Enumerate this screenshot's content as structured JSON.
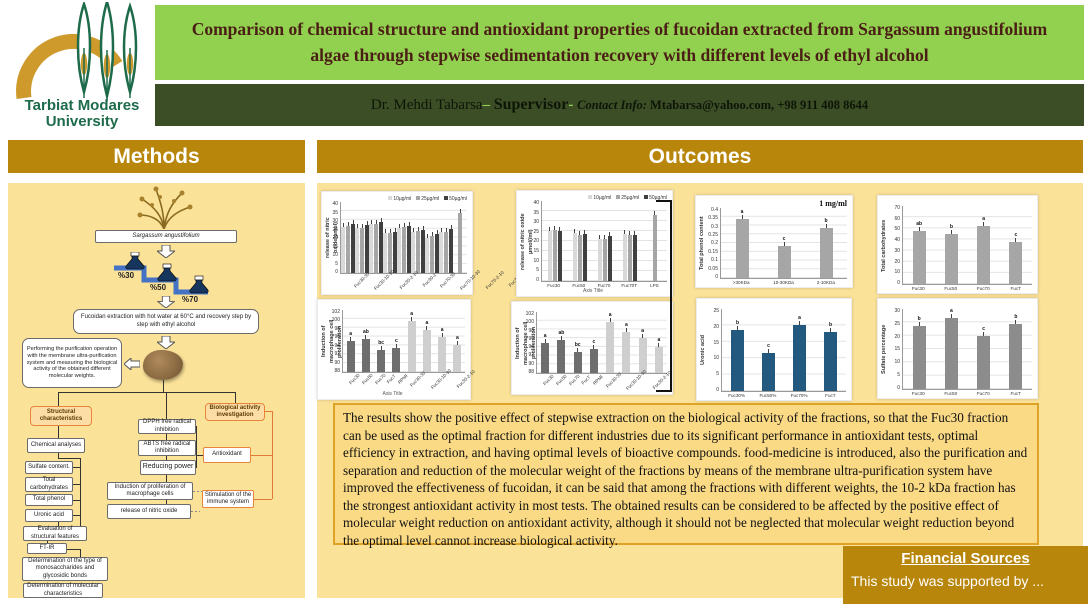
{
  "header": {
    "logo_line1": "Tarbiat Modares",
    "logo_line2": "University",
    "title": "Comparison of chemical structure and antioxidant properties of fucoidan extracted from Sargassum angustifolium algae through stepwise sedimentation recovery with different levels of ethyl alcohol",
    "supervisor_name": "Dr. Mehdi Tabarsa",
    "dash1": "– ",
    "supervisor_role": "Supervisor",
    "dash2": "- ",
    "contact_label": "Contact Info: ",
    "contact_value": "Mtabarsa@yahoo.com, +98 911 408 8644"
  },
  "sections": {
    "methods": "Methods",
    "outcomes": "Outcomes",
    "financial_title": "Financial Sources",
    "financial_text": "This study was supported by ..."
  },
  "methods_flow": {
    "source": "Sargassum angustifolium",
    "flask_labels": [
      "%30",
      "%50",
      "%70"
    ],
    "extraction": "Fucoidan extraction with hot water at 60°C and recovery step by step with ethyl alcohol",
    "purification": "Performing the purification operation with the membrane ultra-purification system and measuring the biological activity of the obtained different molecular weights.",
    "structural_header": "Structural characteristics",
    "bio_header": "Biological activity investigation",
    "left_boxes": [
      "Chemical analyses",
      "Sulfate content.",
      "Total carbohydrates",
      "Total phenol",
      "Uronic acid",
      "Evaluation of structural features",
      "FT-IR",
      "Determination of the type of monosaccharides and glycosidic bonds",
      "Determination of molecular characteristics"
    ],
    "mid_boxes": [
      "DPPH free radical inhibition",
      "ABTS free radical inhibition",
      "Reducing power",
      "Induction of proliferation of macrophage cells",
      "release of nitric oxide"
    ],
    "right_boxes": [
      "Antioxidant",
      "Stimulation of the immune system"
    ]
  },
  "results_text": "The results show the positive effect of stepwise extraction on the biological activity of the fractions, so that the Fuc30 fraction can be used as the optimal fraction for different industries due to its significant performance in antioxidant tests, optimal efficiency in extraction, and having optimal levels of bioactive compounds. food-medicine is introduced, also the purification and separation and reduction of the molecular weight of the fractions by means of the membrane ultra-purification system have improved the effectiveness of fucoidan, it can be said that among the fractions with different weights, the 10-2 kDa fraction has the strongest antioxidant activity in most tests. The obtained results can be considered to be affected by the positive effect of molecular weight reduction on antioxidant activity, although it should not be neglected that molecular weight reduction beyond the optimal level cannot increase biological activity.",
  "colors": {
    "gold": "#B8860B",
    "panel_amber": "#FBE299",
    "title_green": "#92D050",
    "dark_green_bar": "#3C4E26",
    "blue_bar": "#23597E"
  },
  "chart_data": [
    {
      "type": "bar",
      "ylabel": "release of nitric oxide(µmol)",
      "ylim": [
        0,
        40
      ],
      "ystep": 5,
      "legend": true,
      "rotate": true,
      "err": true,
      "grid": true,
      "categories": [
        "Fuc30-30",
        "Fuc30-10-30",
        "Fuc30-2-10",
        "Fuc30-2",
        "Fuc70-30",
        "Fuc70-10-30",
        "Fuc70-2-10",
        "Fuc70-2",
        "LPS"
      ],
      "series": [
        {
          "name": "10µg/ml",
          "color": "#D9D9D9",
          "values": [
            26,
            25.5,
            27.5,
            22.5,
            25.5,
            23,
            20,
            23,
            null
          ]
        },
        {
          "name": "25µg/ml",
          "color": "#A6A6A6",
          "values": [
            26.5,
            25.5,
            27.5,
            22.5,
            26,
            23.5,
            21,
            23,
            34
          ]
        },
        {
          "name": "50µg/ml",
          "color": "#404040",
          "values": [
            27.5,
            27,
            28.5,
            23,
            26.5,
            24,
            22,
            25,
            null
          ]
        }
      ]
    },
    {
      "type": "bar",
      "ylabel": "release of nitric oxide µmol(/ml)",
      "xlabel": "Axis Title",
      "ylim": [
        0,
        40
      ],
      "ystep": 5,
      "legend": true,
      "rotate": false,
      "err": true,
      "grid": true,
      "categories": [
        "Fuc30",
        "Fuc50",
        "Fuc70",
        "Fuc70T",
        "LPS"
      ],
      "series": [
        {
          "name": "10µg/ml",
          "color": "#D9D9D9",
          "values": [
            25,
            24,
            21,
            23.5,
            null
          ]
        },
        {
          "name": "25µg/ml",
          "color": "#A6A6A6",
          "values": [
            25.5,
            23,
            21,
            23,
            33
          ]
        },
        {
          "name": "50µg/ml",
          "color": "#404040",
          "values": [
            25,
            23.5,
            22.5,
            23,
            null
          ]
        }
      ]
    },
    {
      "type": "bar",
      "annotation": "1 mg/ml",
      "ylabel": "Total phenol content",
      "ylim": [
        0,
        0.4
      ],
      "ystep": 0.05,
      "err": true,
      "grid": true,
      "color": "#A6A6A6",
      "categories": [
        ">30KDa",
        "10-30KDa",
        "2-10KDa"
      ],
      "values": [
        0.34,
        0.18,
        0.285
      ],
      "letters": [
        "a",
        "c",
        "b"
      ]
    },
    {
      "type": "bar",
      "ylabel": "Total carbohydrates",
      "ylim": [
        0,
        70
      ],
      "ystep": 10,
      "err": true,
      "grid": true,
      "color": "#A6A6A6",
      "categories": [
        "Fuc30",
        "Fuc50",
        "Fuc70",
        "FucT"
      ],
      "values": [
        48,
        45,
        52,
        38
      ],
      "letters": [
        "ab",
        "b",
        "a",
        "c"
      ]
    },
    {
      "type": "bar",
      "ylabel": "Induction of macrophage cell proliferation",
      "xlabel": "Axis Title",
      "ylim": [
        88,
        102
      ],
      "ystep": 2,
      "rotate": true,
      "err": true,
      "grid": true,
      "categories": [
        "Fuc30",
        "Fuc50",
        "Fuc70",
        "FucT",
        "RPMI",
        "Fuc30-30",
        "Fuc30-10-30",
        "Fuc30-2-10"
      ],
      "values": [
        95,
        95.5,
        93,
        93.5,
        99.5,
        97.5,
        96,
        94.2
      ],
      "letters": [
        "a",
        "ab",
        "bc",
        "c",
        "a",
        "a",
        "a",
        "a"
      ],
      "bar_colors": [
        "#6E6E6E",
        "#6E6E6E",
        "#6E6E6E",
        "#6E6E6E",
        "#CFCFCF",
        "#CFCFCF",
        "#CFCFCF",
        "#CFCFCF"
      ]
    },
    {
      "type": "bar",
      "ylabel": "Induction of macrophage cell proliferation",
      "ylim": [
        88,
        102
      ],
      "ystep": 2,
      "rotate": true,
      "err": true,
      "grid": true,
      "categories": [
        "Fuc30",
        "Fuc50",
        "Fuc70",
        "FucT",
        "RPMI",
        "Fuc30-30",
        "Fuc30-10-30",
        "Fuc30-2-10"
      ],
      "values": [
        94.8,
        95.6,
        92.9,
        93.4,
        99.7,
        97.4,
        96.1,
        94
      ],
      "letters": [
        "a",
        "ab",
        "bc",
        "c",
        "a",
        "a",
        "a",
        "a"
      ],
      "bar_colors": [
        "#6E6E6E",
        "#6E6E6E",
        "#6E6E6E",
        "#6E6E6E",
        "#CFCFCF",
        "#CFCFCF",
        "#CFCFCF",
        "#CFCFCF"
      ]
    },
    {
      "type": "bar",
      "ylabel": "Uronic acid",
      "ylim": [
        0,
        25
      ],
      "ystep": 5,
      "err": true,
      "grid": true,
      "color": "#23597E",
      "categories": [
        "Fuc30%",
        "Fuc50%",
        "Fuc70%",
        "FucT"
      ],
      "values": [
        18.7,
        11.5,
        20,
        18
      ],
      "letters": [
        "b",
        "c",
        "a",
        "b"
      ]
    },
    {
      "type": "bar",
      "ylabel": "Sulfate percentage",
      "ylim": [
        0,
        30
      ],
      "ystep": 5,
      "err": true,
      "grid": true,
      "color": "#8C8C8C",
      "categories": [
        "Fuc30",
        "Fuc50",
        "Fuc70",
        "FucT"
      ],
      "values": [
        23.5,
        26.5,
        20,
        24.5
      ],
      "letters": [
        "b",
        "a",
        "c",
        "b"
      ]
    }
  ]
}
